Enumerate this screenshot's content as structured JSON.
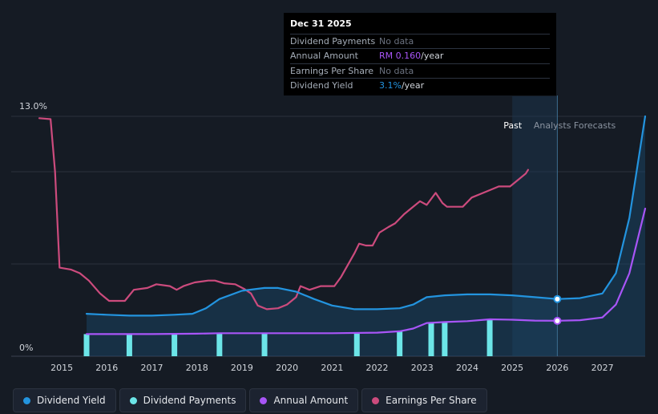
{
  "tooltip": {
    "date": "Dec 31 2025",
    "rows": [
      {
        "label": "Dividend Payments",
        "value": "No data",
        "unit": ""
      },
      {
        "label": "Annual Amount",
        "value": "RM 0.160",
        "unit": "/year"
      },
      {
        "label": "Earnings Per Share",
        "value": "No data",
        "unit": ""
      },
      {
        "label": "Dividend Yield",
        "value": "3.1%",
        "unit": "/year"
      }
    ]
  },
  "legend": [
    {
      "label": "Dividend Yield",
      "color": "#2394df"
    },
    {
      "label": "Dividend Payments",
      "color": "#6ce5e8"
    },
    {
      "label": "Annual Amount",
      "color": "#a855f7"
    },
    {
      "label": "Earnings Per Share",
      "color": "#cc4b7d"
    }
  ],
  "chart_data": {
    "type": "line",
    "title": "",
    "ylabel_top": "13.0%",
    "ylabel_bottom": "0%",
    "ylim": [
      0,
      13
    ],
    "xlim": [
      2014.5,
      2027.95
    ],
    "x_ticks": [
      "2015",
      "2016",
      "2017",
      "2018",
      "2019",
      "2020",
      "2021",
      "2022",
      "2023",
      "2024",
      "2025",
      "2026",
      "2027"
    ],
    "x_tick_values": [
      2015,
      2016,
      2017,
      2018,
      2019,
      2020,
      2021,
      2022,
      2023,
      2024,
      2025,
      2026,
      2027
    ],
    "past_label": "Past",
    "forecast_label": "Analysts Forecasts",
    "forecast_start": 2025.0,
    "past_end": 2025.35,
    "cursor_x": 2026.0,
    "series": [
      {
        "name": "Dividend Yield",
        "color": "#2394df",
        "points": [
          [
            2015.55,
            2.3
          ],
          [
            2016,
            2.25
          ],
          [
            2016.5,
            2.2
          ],
          [
            2017,
            2.2
          ],
          [
            2017.5,
            2.25
          ],
          [
            2017.9,
            2.3
          ],
          [
            2018.2,
            2.6
          ],
          [
            2018.5,
            3.1
          ],
          [
            2019,
            3.55
          ],
          [
            2019.5,
            3.7
          ],
          [
            2019.8,
            3.7
          ],
          [
            2020.2,
            3.5
          ],
          [
            2020.6,
            3.1
          ],
          [
            2021,
            2.75
          ],
          [
            2021.5,
            2.55
          ],
          [
            2022,
            2.55
          ],
          [
            2022.5,
            2.6
          ],
          [
            2022.8,
            2.8
          ],
          [
            2023.1,
            3.2
          ],
          [
            2023.5,
            3.3
          ],
          [
            2024,
            3.35
          ],
          [
            2024.5,
            3.35
          ],
          [
            2025,
            3.3
          ],
          [
            2025.5,
            3.2
          ],
          [
            2026,
            3.1
          ],
          [
            2026.5,
            3.15
          ],
          [
            2027,
            3.4
          ],
          [
            2027.3,
            4.5
          ],
          [
            2027.6,
            7.5
          ],
          [
            2027.95,
            13.0
          ]
        ],
        "markers": [
          [
            2026.0,
            3.1
          ]
        ]
      },
      {
        "name": "Annual Amount",
        "color": "#a855f7",
        "points": [
          [
            2015.55,
            1.2
          ],
          [
            2016,
            1.2
          ],
          [
            2017,
            1.2
          ],
          [
            2018,
            1.22
          ],
          [
            2018.5,
            1.25
          ],
          [
            2019,
            1.25
          ],
          [
            2020,
            1.25
          ],
          [
            2021,
            1.25
          ],
          [
            2022,
            1.28
          ],
          [
            2022.5,
            1.35
          ],
          [
            2022.8,
            1.5
          ],
          [
            2023.1,
            1.8
          ],
          [
            2023.5,
            1.85
          ],
          [
            2024,
            1.9
          ],
          [
            2024.5,
            2.0
          ],
          [
            2025,
            1.98
          ],
          [
            2025.5,
            1.93
          ],
          [
            2026,
            1.92
          ],
          [
            2026.5,
            1.95
          ],
          [
            2027,
            2.1
          ],
          [
            2027.3,
            2.8
          ],
          [
            2027.6,
            4.5
          ],
          [
            2027.95,
            8.0
          ]
        ],
        "markers": [
          [
            2026.0,
            1.92
          ]
        ]
      },
      {
        "name": "Earnings Per Share",
        "color": "#cc4b7d",
        "points": [
          [
            2014.5,
            12.9
          ],
          [
            2014.75,
            12.85
          ],
          [
            2014.85,
            10.0
          ],
          [
            2014.95,
            4.8
          ],
          [
            2015.2,
            4.7
          ],
          [
            2015.4,
            4.5
          ],
          [
            2015.6,
            4.1
          ],
          [
            2015.85,
            3.4
          ],
          [
            2016.05,
            3.0
          ],
          [
            2016.4,
            3.0
          ],
          [
            2016.6,
            3.6
          ],
          [
            2016.9,
            3.7
          ],
          [
            2017.1,
            3.9
          ],
          [
            2017.4,
            3.8
          ],
          [
            2017.55,
            3.6
          ],
          [
            2017.7,
            3.8
          ],
          [
            2017.95,
            4.0
          ],
          [
            2018.25,
            4.1
          ],
          [
            2018.4,
            4.1
          ],
          [
            2018.6,
            3.95
          ],
          [
            2018.85,
            3.9
          ],
          [
            2019.05,
            3.65
          ],
          [
            2019.2,
            3.4
          ],
          [
            2019.35,
            2.75
          ],
          [
            2019.55,
            2.55
          ],
          [
            2019.8,
            2.6
          ],
          [
            2020,
            2.8
          ],
          [
            2020.2,
            3.2
          ],
          [
            2020.3,
            3.8
          ],
          [
            2020.5,
            3.6
          ],
          [
            2020.75,
            3.8
          ],
          [
            2021.05,
            3.8
          ],
          [
            2021.2,
            4.3
          ],
          [
            2021.5,
            5.6
          ],
          [
            2021.6,
            6.1
          ],
          [
            2021.75,
            6.0
          ],
          [
            2021.9,
            6.0
          ],
          [
            2022.05,
            6.7
          ],
          [
            2022.25,
            7.0
          ],
          [
            2022.4,
            7.2
          ],
          [
            2022.6,
            7.7
          ],
          [
            2022.75,
            8.0
          ],
          [
            2022.95,
            8.4
          ],
          [
            2023.1,
            8.2
          ],
          [
            2023.3,
            8.85
          ],
          [
            2023.45,
            8.3
          ],
          [
            2023.55,
            8.1
          ],
          [
            2023.9,
            8.1
          ],
          [
            2024.1,
            8.6
          ],
          [
            2024.3,
            8.8
          ],
          [
            2024.5,
            9.0
          ],
          [
            2024.7,
            9.2
          ],
          [
            2024.95,
            9.2
          ],
          [
            2025.1,
            9.5
          ],
          [
            2025.3,
            9.9
          ],
          [
            2025.35,
            10.1
          ]
        ],
        "markers": []
      }
    ],
    "dividend_payments": {
      "name": "Dividend Payments",
      "color": "#6ce5e8",
      "x": [
        2015.55,
        2016.5,
        2017.5,
        2018.5,
        2019.5,
        2021.55,
        2022.5,
        2023.2,
        2023.5,
        2024.5
      ],
      "heights": [
        1.2,
        1.2,
        1.2,
        1.22,
        1.25,
        1.25,
        1.35,
        1.8,
        1.85,
        2.0
      ]
    }
  }
}
